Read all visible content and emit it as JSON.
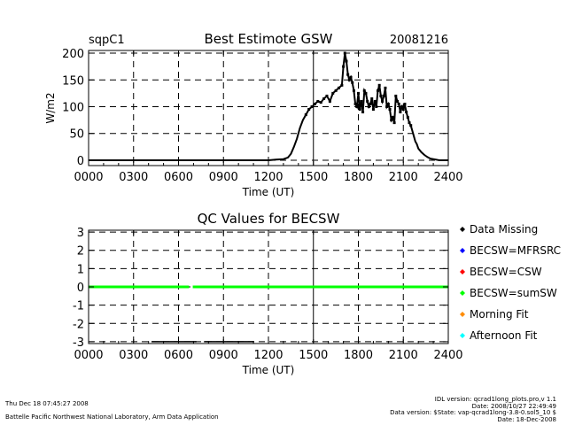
{
  "chart_data": [
    {
      "type": "scatter",
      "title": "Best Estimote GSW",
      "site": "sqpC1",
      "date": "20081216",
      "xlabel": "Time (UT)",
      "ylabel": "W/m2",
      "xlim": [
        0,
        2400
      ],
      "ylim": [
        -10,
        205
      ],
      "x_ticks": [
        "0000",
        "0300",
        "0600",
        "0900",
        "1200",
        "1500",
        "1800",
        "2100",
        "2400"
      ],
      "y_ticks": [
        "0",
        "50",
        "100",
        "150",
        "200"
      ],
      "grid": true,
      "series": [
        {
          "color": "#000000",
          "x": [
            0,
            100,
            200,
            300,
            400,
            500,
            600,
            700,
            800,
            900,
            1000,
            1100,
            1200,
            1250,
            1300,
            1330,
            1350,
            1370,
            1390,
            1410,
            1430,
            1450,
            1470,
            1490,
            1510,
            1530,
            1550,
            1570,
            1590,
            1610,
            1630,
            1650,
            1670,
            1690,
            1700,
            1710,
            1720,
            1730,
            1740,
            1750,
            1760,
            1770,
            1780,
            1790,
            1800,
            1810,
            1820,
            1830,
            1840,
            1850,
            1860,
            1870,
            1880,
            1890,
            1900,
            1910,
            1920,
            1930,
            1940,
            1950,
            1960,
            1970,
            1980,
            1990,
            2000,
            2010,
            2020,
            2030,
            2040,
            2050,
            2060,
            2070,
            2080,
            2090,
            2100,
            2110,
            2120,
            2130,
            2140,
            2150,
            2160,
            2170,
            2180,
            2190,
            2200,
            2220,
            2240,
            2260,
            2280,
            2300,
            2320,
            2340,
            2360,
            2380,
            2400
          ],
          "y": [
            0,
            0,
            0,
            0,
            0,
            0,
            0,
            0,
            0,
            0,
            0,
            0,
            0,
            1,
            2,
            5,
            12,
            25,
            40,
            60,
            75,
            85,
            95,
            100,
            105,
            110,
            108,
            115,
            120,
            110,
            125,
            130,
            135,
            140,
            175,
            200,
            185,
            160,
            150,
            155,
            145,
            130,
            105,
            100,
            125,
            95,
            110,
            90,
            130,
            125,
            110,
            100,
            105,
            115,
            95,
            110,
            100,
            130,
            140,
            120,
            110,
            120,
            135,
            100,
            105,
            95,
            75,
            80,
            70,
            120,
            110,
            105,
            90,
            100,
            95,
            105,
            90,
            80,
            70,
            65,
            55,
            45,
            35,
            30,
            22,
            15,
            10,
            6,
            3,
            2,
            1,
            0,
            0,
            0,
            0
          ]
        }
      ]
    },
    {
      "type": "scatter",
      "title": "QC Values for BECSW",
      "xlabel": "Time (UT)",
      "ylabel": "",
      "xlim": [
        0,
        2400
      ],
      "ylim": [
        -3.1,
        3.1
      ],
      "x_ticks": [
        "0000",
        "0300",
        "0600",
        "0900",
        "1200",
        "1500",
        "1800",
        "2100",
        "2400"
      ],
      "y_ticks": [
        "-3",
        "-2",
        "-1",
        "0",
        "1",
        "2",
        "3"
      ],
      "grid": true,
      "legend_position": "right",
      "legend": [
        {
          "label": "Data Missing",
          "color": "#000000"
        },
        {
          "label": "BECSW=MFRSRC",
          "color": "#0000ff"
        },
        {
          "label": "BECSW=CSW",
          "color": "#ff0000"
        },
        {
          "label": "BECSW=sumSW",
          "color": "#00ff00"
        },
        {
          "label": "Morning Fit",
          "color": "#ff8c00"
        },
        {
          "label": "Afternoon Fit",
          "color": "#00ffff"
        }
      ],
      "series": [
        {
          "name": "BECSW=sumSW",
          "color": "#00ff00",
          "segments": [
            [
              0,
              0,
              670,
              0
            ],
            [
              695,
              0,
              2400,
              0
            ]
          ]
        },
        {
          "name": "Data Missing",
          "color": "#000000",
          "segments": [
            [
              420,
              -3,
              720,
              -3
            ],
            [
              770,
              -3,
              1100,
              -3
            ]
          ]
        }
      ]
    }
  ],
  "footer": {
    "left_line1": "Thu Dec 18 07:45:27 2008",
    "left_line2": "Battelle Pacific Northwest National Laboratory, Arm Data Application",
    "right_line1": "IDL version: qcrad1long_plots.pro,v 1.1",
    "right_line2": "Date: 2008/10/27 22:49:49",
    "right_line3": "Data version: $State: vap-qcrad1long-3.8-0.sol5_10 $",
    "right_line4": "Date: 18-Dec-2008"
  }
}
